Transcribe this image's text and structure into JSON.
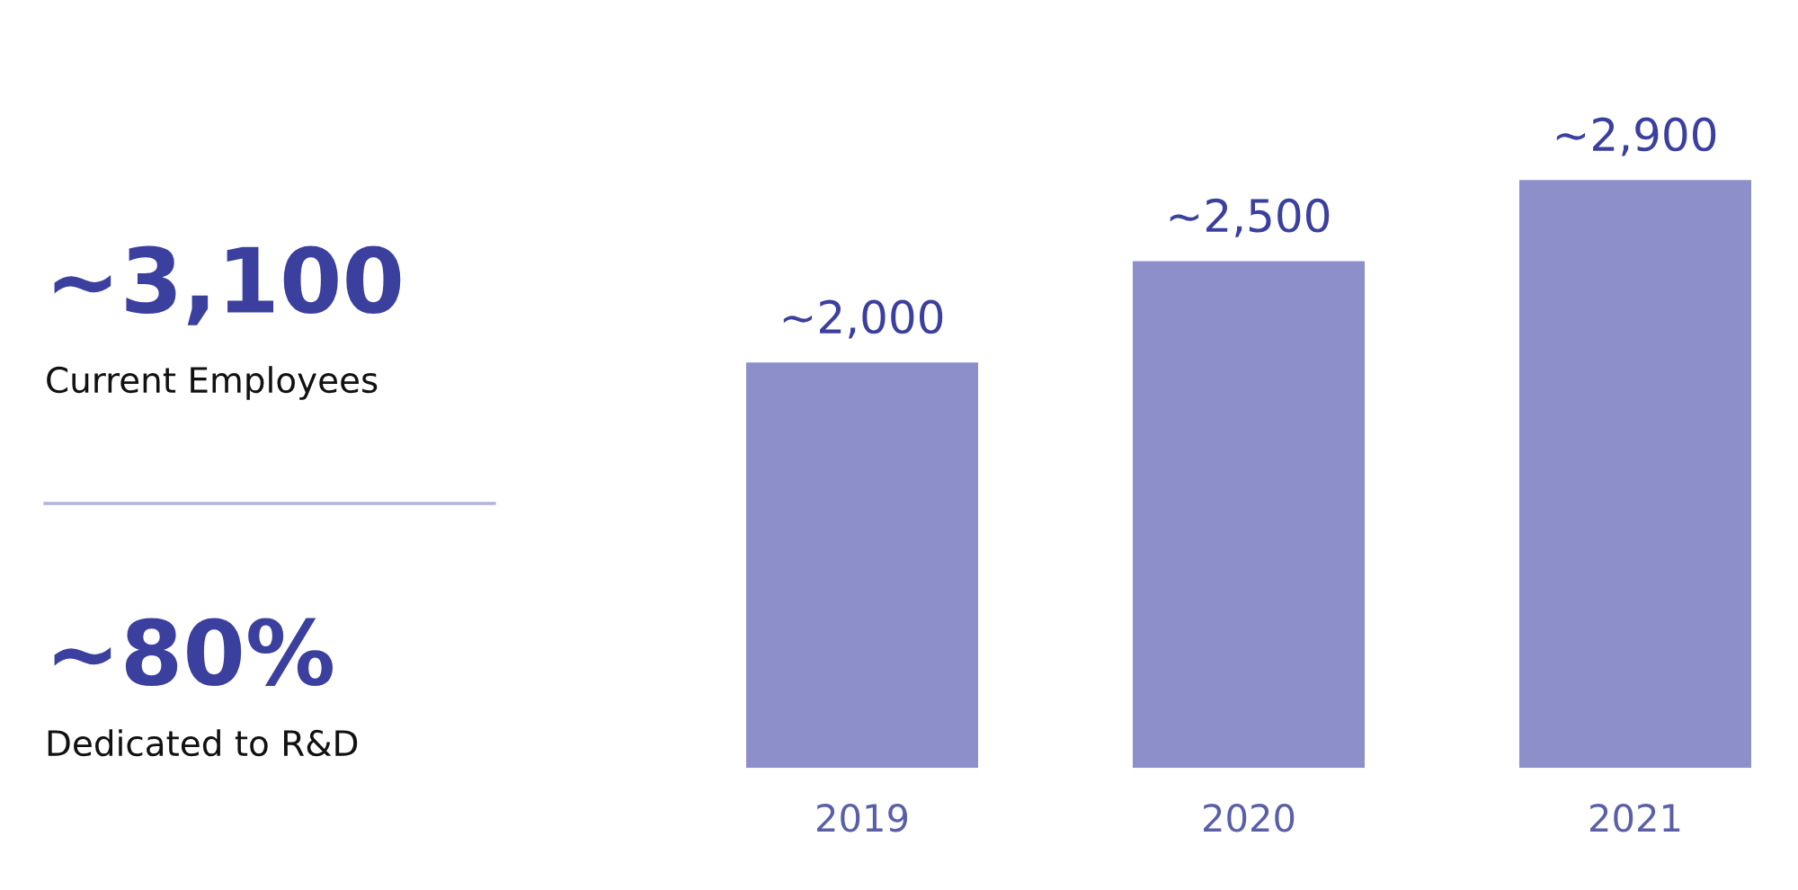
{
  "chart_data": [
    {
      "type": "other",
      "annotations": [
        "~3,100",
        "Current Employees",
        "~80%",
        "Dedicated to R&D"
      ]
    },
    {
      "type": "bar",
      "categories": [
        "2019",
        "2020",
        "2021"
      ],
      "values": [
        2000,
        2500,
        2900
      ],
      "value_labels": [
        "~2,000",
        "~2,500",
        "~2,900"
      ],
      "color": "#8c8fca",
      "grid": false,
      "legend": false
    }
  ]
}
